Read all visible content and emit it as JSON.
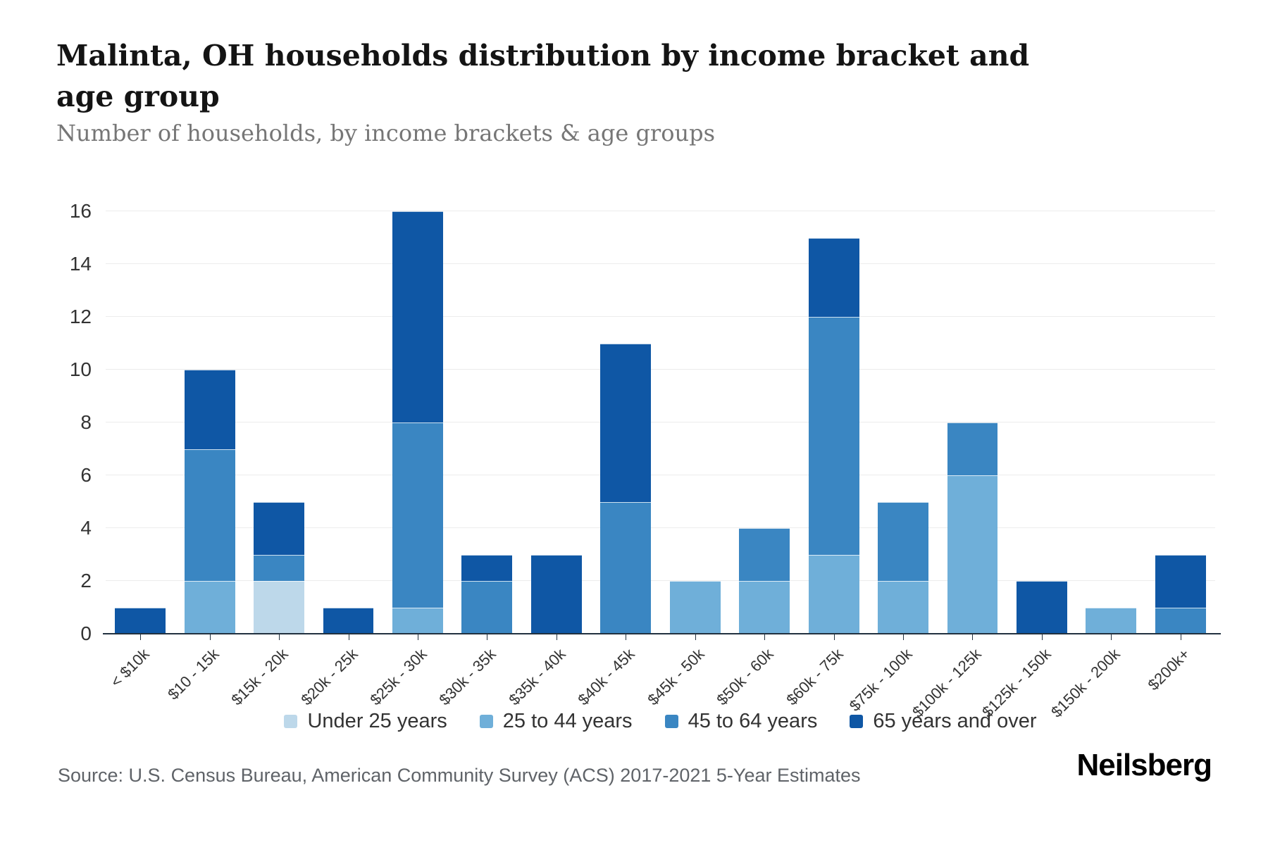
{
  "header": {
    "title": "Malinta, OH households distribution by income bracket and age group",
    "subtitle": "Number of households, by income brackets & age groups"
  },
  "chart_data": {
    "type": "bar",
    "stacked": true,
    "title": "Malinta, OH households distribution by income bracket and age group",
    "subtitle": "Number of households, by income brackets & age groups",
    "xlabel": "",
    "ylabel": "Number of households",
    "ylim": [
      0,
      16
    ],
    "ytick_step": 2,
    "grid": "horizontal",
    "legend_position": "bottom",
    "categories": [
      "< $10k",
      "$10 - 15k",
      "$15k - 20k",
      "$20k - 25k",
      "$25k - 30k",
      "$30k - 35k",
      "$35k - 40k",
      "$40k - 45k",
      "$45k - 50k",
      "$50k - 60k",
      "$60k - 75k",
      "$75k - 100k",
      "$100k - 125k",
      "$125k - 150k",
      "$150k - 200k",
      "$200k+"
    ],
    "series": [
      {
        "name": "Under 25 years",
        "color": "#bdd8ea",
        "values": [
          0,
          0,
          2,
          0,
          0,
          0,
          0,
          0,
          0,
          0,
          0,
          0,
          0,
          0,
          0,
          0
        ]
      },
      {
        "name": "25 to 44 years",
        "color": "#6fafd9",
        "values": [
          0,
          2,
          0,
          0,
          1,
          0,
          0,
          0,
          2,
          2,
          3,
          2,
          6,
          0,
          1,
          0
        ]
      },
      {
        "name": "45 to 64 years",
        "color": "#3a86c2",
        "values": [
          0,
          5,
          1,
          0,
          7,
          2,
          0,
          5,
          0,
          2,
          9,
          3,
          2,
          0,
          0,
          1
        ]
      },
      {
        "name": "65 years and over",
        "color": "#0f57a5",
        "values": [
          1,
          3,
          2,
          1,
          8,
          1,
          3,
          6,
          0,
          0,
          3,
          0,
          0,
          2,
          0,
          2
        ]
      }
    ],
    "totals": [
      1,
      10,
      5,
      1,
      16,
      3,
      3,
      11,
      2,
      4,
      15,
      5,
      8,
      2,
      1,
      3
    ]
  },
  "footer": {
    "source": "Source: U.S. Census Bureau, American Community Survey (ACS) 2017-2021 5-Year Estimates",
    "brand": "Neilsberg"
  }
}
